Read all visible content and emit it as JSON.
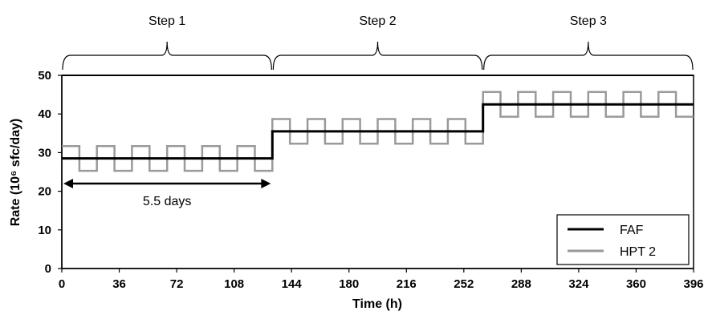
{
  "chart_data": {
    "type": "line",
    "xlabel": "Time (h)",
    "ylabel": "Rate (10⁶ sfc/day)",
    "xlim": [
      0,
      396
    ],
    "ylim": [
      0,
      50
    ],
    "x_ticks": [
      0,
      36,
      72,
      108,
      144,
      180,
      216,
      252,
      288,
      324,
      360,
      396
    ],
    "y_ticks": [
      0,
      10,
      20,
      30,
      40,
      50
    ],
    "grid": false,
    "legend_position": "bottom-right",
    "steps": [
      {
        "label": "Step 1",
        "x_start": 0,
        "x_end": 132
      },
      {
        "label": "Step 2",
        "x_start": 132,
        "x_end": 264
      },
      {
        "label": "Step 3",
        "x_start": 264,
        "x_end": 396
      }
    ],
    "annotations": [
      {
        "text": "5.5 days",
        "type": "double-arrow",
        "x_start": 0,
        "x_end": 132,
        "y": 22
      }
    ],
    "series": [
      {
        "name": "FAF",
        "color": "#000000",
        "x": [
          0,
          132,
          132,
          264,
          264,
          396
        ],
        "y": [
          28.5,
          28.5,
          35.5,
          35.5,
          42.5,
          42.5
        ]
      },
      {
        "name": "HPT 2",
        "color": "#9a9a9a",
        "x": [
          0,
          11,
          11,
          22,
          22,
          33,
          33,
          44,
          44,
          55,
          55,
          66,
          66,
          77,
          77,
          88,
          88,
          99,
          99,
          110,
          110,
          121,
          121,
          132,
          132,
          143,
          143,
          154,
          154,
          165,
          165,
          176,
          176,
          187,
          187,
          198,
          198,
          209,
          209,
          220,
          220,
          231,
          231,
          242,
          242,
          253,
          253,
          264,
          264,
          275,
          275,
          286,
          286,
          297,
          297,
          308,
          308,
          319,
          319,
          330,
          330,
          341,
          341,
          352,
          352,
          363,
          363,
          374,
          374,
          385,
          385,
          396
        ],
        "y": [
          31.7,
          31.7,
          25.3,
          25.3,
          31.7,
          31.7,
          25.3,
          25.3,
          31.7,
          31.7,
          25.3,
          25.3,
          31.7,
          31.7,
          25.3,
          25.3,
          31.7,
          31.7,
          25.3,
          25.3,
          31.7,
          31.7,
          25.3,
          25.3,
          38.7,
          38.7,
          32.3,
          32.3,
          38.7,
          38.7,
          32.3,
          32.3,
          38.7,
          38.7,
          32.3,
          32.3,
          38.7,
          38.7,
          32.3,
          32.3,
          38.7,
          38.7,
          32.3,
          32.3,
          38.7,
          38.7,
          32.3,
          32.3,
          45.7,
          45.7,
          39.3,
          39.3,
          45.7,
          45.7,
          39.3,
          39.3,
          45.7,
          45.7,
          39.3,
          39.3,
          45.7,
          45.7,
          39.3,
          39.3,
          45.7,
          45.7,
          39.3,
          39.3,
          45.7,
          45.7,
          39.3,
          39.3
        ]
      }
    ]
  }
}
